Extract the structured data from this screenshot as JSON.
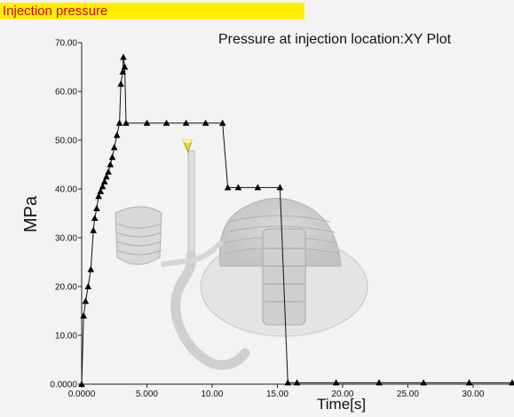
{
  "banner": {
    "label": "Injection pressure"
  },
  "chart_data": {
    "type": "line",
    "title": "Pressure at injection location:XY Plot",
    "xlabel": "Time[s]",
    "ylabel": "MPa",
    "xlim": [
      0,
      33
    ],
    "ylim": [
      0,
      70
    ],
    "x_ticks": [
      0,
      5,
      10,
      15,
      20,
      25,
      30
    ],
    "x_tick_labels": [
      "0.0000",
      "5.000",
      "10.00",
      "15.00",
      "20.00",
      "25.00",
      "30.00"
    ],
    "y_ticks": [
      0,
      10,
      20,
      30,
      40,
      50,
      60,
      70
    ],
    "y_tick_labels": [
      "0.0000",
      "10.00",
      "20.00",
      "30.00",
      "40.00",
      "50.00",
      "60.00",
      "70.00"
    ],
    "grid": false,
    "legend": "none",
    "colors": {
      "line": "#111111",
      "marker": "#000000",
      "banner_bg": "#ffee00",
      "banner_text": "#d40000"
    },
    "series": [
      {
        "x": [
          0.0,
          0.15,
          0.3,
          0.5,
          0.7,
          0.9,
          1.0,
          1.15,
          1.3,
          1.45,
          1.6,
          1.75,
          1.9,
          2.05,
          2.2,
          2.35,
          2.5,
          2.7,
          2.9,
          3.0,
          3.15,
          3.2,
          3.3,
          3.4,
          5.0,
          6.5,
          8.0,
          9.5,
          10.8,
          11.2,
          12.0,
          13.5,
          15.2,
          15.8,
          16.5,
          19.5,
          22.8,
          26.2,
          29.7,
          33.0
        ],
        "y": [
          0.0,
          14.0,
          17.0,
          20.0,
          23.5,
          31.5,
          34.0,
          36.0,
          38.5,
          39.5,
          40.5,
          41.5,
          42.5,
          43.5,
          45.0,
          46.5,
          48.5,
          51.0,
          53.5,
          61.5,
          64.0,
          67.0,
          65.0,
          53.5,
          53.5,
          53.5,
          53.5,
          53.5,
          53.5,
          40.3,
          40.3,
          40.3,
          40.3,
          0.3,
          0.3,
          0.3,
          0.3,
          0.3,
          0.3,
          0.3
        ]
      }
    ]
  }
}
